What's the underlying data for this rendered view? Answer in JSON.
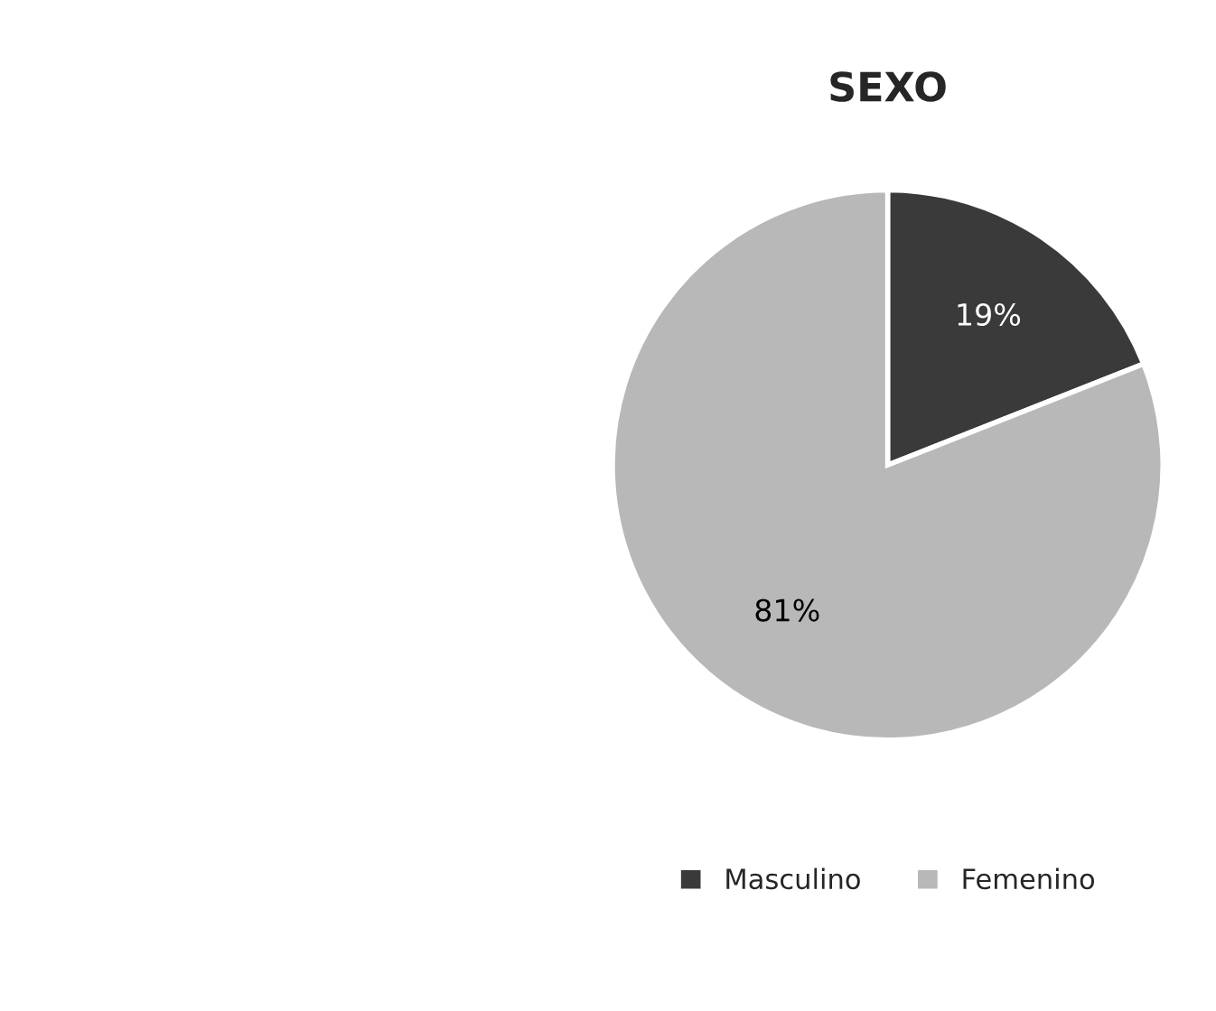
{
  "chart_data": {
    "type": "pie",
    "title": "SEXO",
    "categories": [
      "Masculino",
      "Femenino"
    ],
    "values": [
      19,
      81
    ],
    "colors": [
      "#3a3a3a",
      "#b8b8b8"
    ],
    "value_labels": [
      "19%",
      "81%"
    ],
    "legend": "bottom"
  }
}
